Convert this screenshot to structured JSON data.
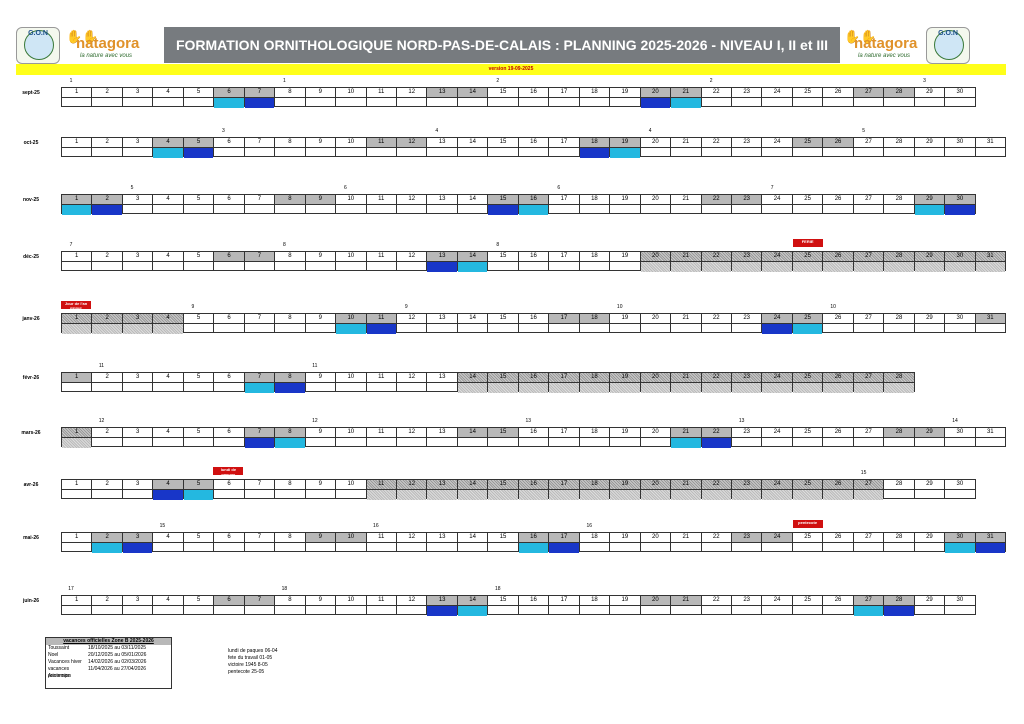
{
  "header": {
    "title": "FORMATION ORNITHOLOGIQUE NORD-PAS-DE-CALAIS : PLANNING 2025-2026 - NIVEAU I, II et III",
    "logo_left_text": "G.O.N",
    "brand": "natagora",
    "brand_tagline": "la nature avec vous",
    "logo_right_text": "G.O.N",
    "version": "version 19-09-2025"
  },
  "months": [
    {
      "label": "sept-25",
      "days": 30,
      "weekends": [
        6,
        7,
        13,
        14,
        20,
        21,
        27,
        28
      ],
      "blue": [
        7,
        20
      ],
      "cyan": [
        6,
        21
      ],
      "weeks": [
        {
          "d": 1,
          "n": "1"
        },
        {
          "d": 8,
          "n": "1"
        },
        {
          "d": 15,
          "n": "2"
        },
        {
          "d": 22,
          "n": "2"
        },
        {
          "d": 29,
          "n": "3"
        }
      ]
    },
    {
      "label": "oct-25",
      "days": 31,
      "weekends": [
        4,
        5,
        11,
        12,
        18,
        19,
        25,
        26
      ],
      "blue": [
        5,
        18
      ],
      "cyan": [
        4,
        19
      ],
      "weeks": [
        {
          "d": 6,
          "n": "3"
        },
        {
          "d": 13,
          "n": "4"
        },
        {
          "d": 20,
          "n": "4"
        },
        {
          "d": 27,
          "n": "5"
        }
      ]
    },
    {
      "label": "nov-25",
      "days": 30,
      "weekends": [
        1,
        2,
        8,
        9,
        15,
        16,
        22,
        23,
        29,
        30
      ],
      "blue": [
        2,
        15,
        30
      ],
      "cyan": [
        1,
        16,
        29
      ],
      "weeks": [
        {
          "d": 3,
          "n": "5"
        },
        {
          "d": 10,
          "n": "6"
        },
        {
          "d": 17,
          "n": "6"
        },
        {
          "d": 24,
          "n": "7"
        }
      ]
    },
    {
      "label": "déc-25",
      "days": 31,
      "weekends": [
        6,
        7,
        13,
        14,
        20,
        21,
        27,
        28
      ],
      "blue": [
        13
      ],
      "cyan": [
        14
      ],
      "holidays": [
        20,
        21,
        22,
        23,
        24,
        25,
        26,
        27,
        28,
        29,
        30,
        31
      ],
      "weeks": [
        {
          "d": 1,
          "n": "7"
        },
        {
          "d": 8,
          "n": "8"
        },
        {
          "d": 15,
          "n": "8"
        }
      ],
      "tag": {
        "d": 25,
        "t": "FERIE"
      }
    },
    {
      "label": "janv-26",
      "days": 31,
      "weekends": [
        3,
        4,
        10,
        11,
        17,
        18,
        24,
        25,
        31
      ],
      "blue": [
        11,
        24
      ],
      "cyan": [
        10,
        25
      ],
      "holidays": [
        1,
        2,
        3,
        4
      ],
      "weeks": [
        {
          "d": 5,
          "n": "9"
        },
        {
          "d": 12,
          "n": "9"
        },
        {
          "d": 19,
          "n": "10"
        },
        {
          "d": 26,
          "n": "10"
        }
      ],
      "tag": {
        "d": 1,
        "t": "Jour de l'an FERIE"
      }
    },
    {
      "label": "févr-26",
      "days": 28,
      "weekends": [
        1,
        7,
        8,
        14,
        15,
        21,
        22,
        28
      ],
      "blue": [
        8
      ],
      "cyan": [
        7
      ],
      "holidays": [
        14,
        15,
        16,
        17,
        18,
        19,
        20,
        21,
        22,
        23,
        24,
        25,
        26,
        27,
        28
      ],
      "weeks": [
        {
          "d": 2,
          "n": "11"
        },
        {
          "d": 9,
          "n": "11"
        }
      ]
    },
    {
      "label": "mars-26",
      "days": 31,
      "weekends": [
        1,
        7,
        8,
        14,
        15,
        21,
        22,
        28,
        29
      ],
      "blue": [
        7,
        22
      ],
      "cyan": [
        8,
        21
      ],
      "holidays": [
        1
      ],
      "weeks": [
        {
          "d": 2,
          "n": "12"
        },
        {
          "d": 9,
          "n": "12"
        },
        {
          "d": 16,
          "n": "13"
        },
        {
          "d": 23,
          "n": "13"
        },
        {
          "d": 30,
          "n": "14"
        }
      ]
    },
    {
      "label": "avr-26",
      "days": 30,
      "weekends": [
        4,
        5,
        11,
        12,
        18,
        19,
        25,
        26
      ],
      "blue": [
        4
      ],
      "cyan": [
        5
      ],
      "holidays": [
        11,
        12,
        13,
        14,
        15,
        16,
        17,
        18,
        19,
        20,
        21,
        22,
        23,
        24,
        25,
        26,
        27
      ],
      "weeks": [
        {
          "d": 6,
          "n": "14"
        },
        {
          "d": 27,
          "n": "15"
        }
      ],
      "tag": {
        "d": 6,
        "t": "lundi de paques"
      }
    },
    {
      "label": "mai-26",
      "days": 31,
      "weekends": [
        2,
        3,
        9,
        10,
        16,
        17,
        23,
        24,
        30,
        31
      ],
      "blue": [
        3,
        17,
        31
      ],
      "cyan": [
        2,
        16,
        30
      ],
      "weeks": [
        {
          "d": 4,
          "n": "15"
        },
        {
          "d": 11,
          "n": "16"
        },
        {
          "d": 18,
          "n": "16"
        },
        {
          "d": 25,
          "n": "17"
        }
      ],
      "tag": {
        "d": 25,
        "t": "pentecote"
      }
    },
    {
      "label": "juin-26",
      "days": 30,
      "weekends": [
        6,
        7,
        13,
        14,
        20,
        21,
        27,
        28
      ],
      "blue": [
        13,
        28
      ],
      "cyan": [
        14,
        27
      ],
      "weeks": [
        {
          "d": 1,
          "n": "17"
        },
        {
          "d": 8,
          "n": "18"
        },
        {
          "d": 15,
          "n": "18"
        }
      ]
    }
  ],
  "legend": {
    "title": "vacances officielles  Zone B 2025-2026",
    "rows": [
      {
        "name": "Toussaint",
        "dates": "18/10/2025 au 03/11/2025"
      },
      {
        "name": "Noel",
        "dates": "20/12/2025 au 05/01/2026"
      },
      {
        "name": "Vacances hiver",
        "dates": "14/02/2026 au 02/03/2026"
      },
      {
        "name": "vacances printemps",
        "dates": "11/04/2026 au 27/04/2026"
      },
      {
        "name": "Ascension",
        "dates": ""
      }
    ]
  },
  "other_dates": [
    "lundi de paques 06-04",
    "fete du travail 01-05",
    "victoire 1945 8-05",
    "pentecote 25-05"
  ]
}
